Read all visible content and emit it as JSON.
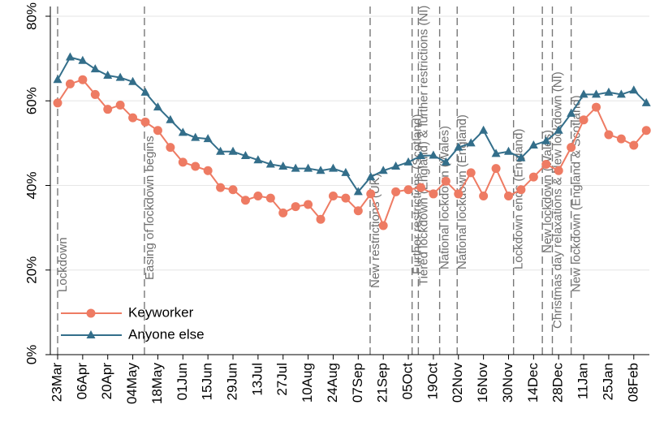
{
  "chart_data": {
    "type": "line",
    "categories": [
      "23Mar",
      null,
      "06Apr",
      null,
      "20Apr",
      null,
      "04May",
      null,
      "18May",
      null,
      "01Jun",
      null,
      "15Jun",
      null,
      "29Jun",
      null,
      "13Jul",
      null,
      "27Jul",
      null,
      "10Aug",
      null,
      "24Aug",
      null,
      "07Sep",
      null,
      "21Sep",
      null,
      "05Oct",
      null,
      "19Oct",
      null,
      "02Nov",
      null,
      "16Nov",
      null,
      "30Nov",
      null,
      "14Dec",
      null,
      "28Dec",
      null,
      "11Jan",
      null,
      "25Jan",
      null,
      "08Feb",
      null
    ],
    "series": [
      {
        "name": "Keyworker",
        "color": "#ee7b63",
        "marker": "circle",
        "values": [
          59.5,
          64,
          65,
          61.5,
          58,
          59,
          56,
          55,
          53,
          49,
          45.5,
          44.5,
          43.5,
          39.5,
          39,
          36.5,
          37.5,
          37,
          33.5,
          35,
          35.5,
          32,
          37.5,
          37,
          34,
          38,
          30.5,
          38.5,
          39,
          39.5,
          38,
          41,
          38,
          43,
          37.5,
          44,
          37.5,
          39,
          42,
          45,
          43.5,
          49,
          55.5,
          58.5,
          52,
          51,
          49.5,
          53
        ]
      },
      {
        "name": "Anyone else",
        "color": "#336e8a",
        "marker": "triangle",
        "values": [
          65,
          70.3,
          69.5,
          67.5,
          66,
          65.5,
          64.5,
          62,
          58.5,
          55.5,
          52.5,
          51.3,
          51,
          48,
          48,
          47,
          46,
          45,
          44.5,
          44,
          44,
          43.5,
          44,
          43,
          38.5,
          42,
          43.5,
          44.5,
          45.5,
          47,
          47.1,
          45.5,
          49,
          50,
          53,
          47.5,
          48,
          46.5,
          49.5,
          50.5,
          53,
          57,
          61.5,
          61.5,
          62,
          61.5,
          62.5,
          59.5
        ]
      }
    ],
    "annotations": [
      {
        "x": 0,
        "text": "Lockdown"
      },
      {
        "x": 6.93,
        "text": "Easing of lockdown begins"
      },
      {
        "x": 24.95,
        "text": "New restrictions (UK)"
      },
      {
        "x": 28.3,
        "text": "Further restrictions (Scotland)"
      },
      {
        "x": 28.8,
        "text": "Tiered lockdown (England) & further restrictions (NI)"
      },
      {
        "x": 30.5,
        "text": "National lockdown (Wales)"
      },
      {
        "x": 31.9,
        "text": "National lockdown (England)"
      },
      {
        "x": 36.4,
        "text": "Lockdown ends (England)"
      },
      {
        "x": 38.7,
        "text": "New lockdown (Wales)"
      },
      {
        "x": 39.5,
        "text": "Christmas day relaxations & New lockdown (NI)"
      },
      {
        "x": 41.0,
        "text": "New lockdown (England & Scotland)"
      }
    ],
    "ylim": [
      0,
      80
    ],
    "yticks": [
      {
        "value": 0,
        "label": "0%"
      },
      {
        "value": 20,
        "label": "20%"
      },
      {
        "value": 40,
        "label": "40%"
      },
      {
        "value": 60,
        "label": "60%"
      },
      {
        "value": 80,
        "label": "80%"
      }
    ],
    "grid": true,
    "legend": "lower left"
  }
}
